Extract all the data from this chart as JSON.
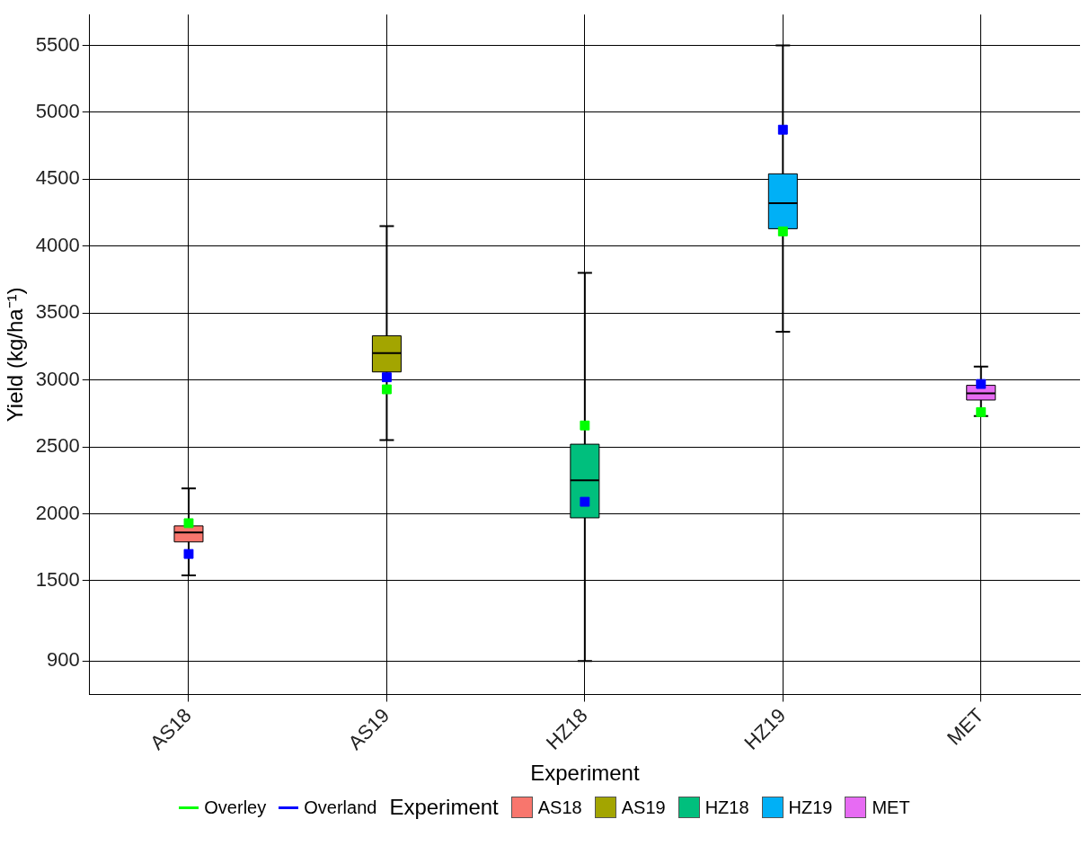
{
  "chart_data": {
    "type": "box",
    "xlabel": "Experiment",
    "ylabel": "Yield (kg/ha⁻¹)",
    "legend_title": "Experiment",
    "categories": [
      "AS18",
      "AS19",
      "HZ18",
      "HZ19",
      "MET"
    ],
    "colors": [
      "#f8766d",
      "#a3a500",
      "#00bf7d",
      "#00b0f6",
      "#e76bf3"
    ],
    "boxes": [
      {
        "low": 1540,
        "q1": 1790,
        "median": 1860,
        "q3": 1910,
        "high": 2190
      },
      {
        "low": 2550,
        "q1": 3060,
        "median": 3200,
        "q3": 3330,
        "high": 4150
      },
      {
        "low": 900,
        "q1": 1970,
        "median": 2250,
        "q3": 2520,
        "high": 3800
      },
      {
        "low": 3360,
        "q1": 4130,
        "median": 4320,
        "q3": 4540,
        "high": 5500
      },
      {
        "low": 2730,
        "q1": 2850,
        "median": 2900,
        "q3": 2960,
        "high": 3100
      }
    ],
    "series": [
      {
        "name": "Overley",
        "type": "scatter",
        "marker": "square",
        "color": "#00ff00",
        "x": [
          "AS18",
          "AS19",
          "HZ18",
          "HZ19",
          "MET"
        ],
        "values": [
          1930,
          2930,
          2660,
          4110,
          2760
        ]
      },
      {
        "name": "Overland",
        "type": "scatter",
        "marker": "square",
        "color": "#0000ff",
        "x": [
          "AS18",
          "AS19",
          "HZ18",
          "HZ19",
          "MET"
        ],
        "values": [
          1700,
          3020,
          2090,
          4870,
          2970
        ]
      }
    ],
    "ylim": [
      650,
      5730
    ],
    "yticks": [
      900,
      1500,
      2000,
      2500,
      3000,
      3500,
      4000,
      4500,
      5000,
      5500
    ],
    "grid": true,
    "legend": "bottom"
  }
}
